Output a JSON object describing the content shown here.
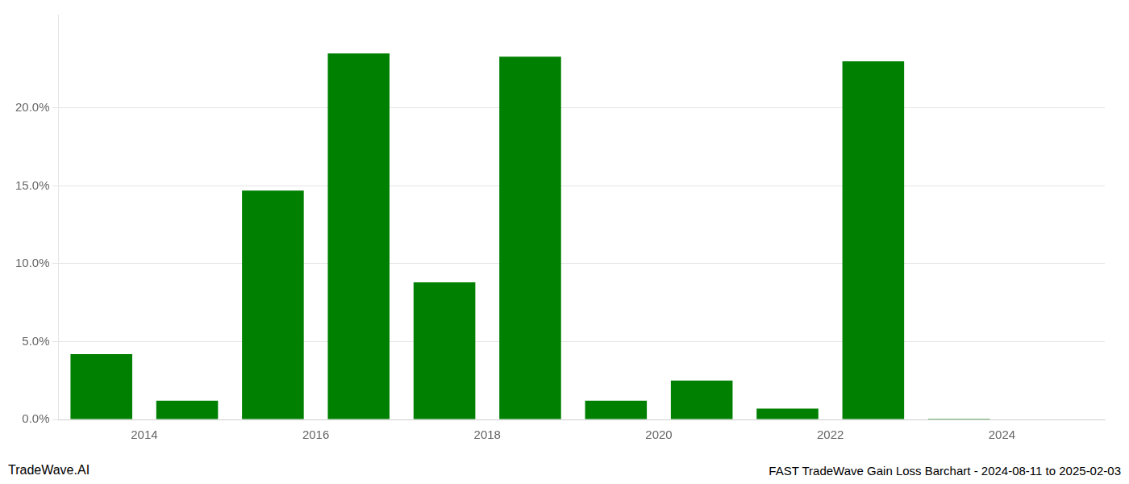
{
  "chart_data": {
    "type": "bar",
    "title": "FAST TradeWave Gain Loss Barchart - 2024-08-11 to 2025-02-03",
    "annotations": [
      "TradeWave.AI"
    ],
    "x": [
      2013.5,
      2014.5,
      2015.5,
      2016.5,
      2017.5,
      2018.5,
      2019.5,
      2020.5,
      2021.5,
      2022.5,
      2023.5,
      2024.5
    ],
    "values": [
      4.2,
      1.2,
      14.7,
      23.5,
      8.8,
      23.3,
      1.2,
      2.5,
      0.7,
      23.0,
      0.05,
      0.0
    ],
    "color": "#008000",
    "xlim": [
      2013.0,
      2025.2
    ],
    "xticks": [
      2014,
      2016,
      2018,
      2020,
      2022,
      2024
    ],
    "ylim": [
      0,
      26
    ],
    "yticks": [
      {
        "value": 0.0,
        "label": "0.0%"
      },
      {
        "value": 5.0,
        "label": "5.0%"
      },
      {
        "value": 10.0,
        "label": "10.0%"
      },
      {
        "value": 15.0,
        "label": "15.0%"
      },
      {
        "value": 20.0,
        "label": "20.0%"
      }
    ],
    "grid": true
  }
}
